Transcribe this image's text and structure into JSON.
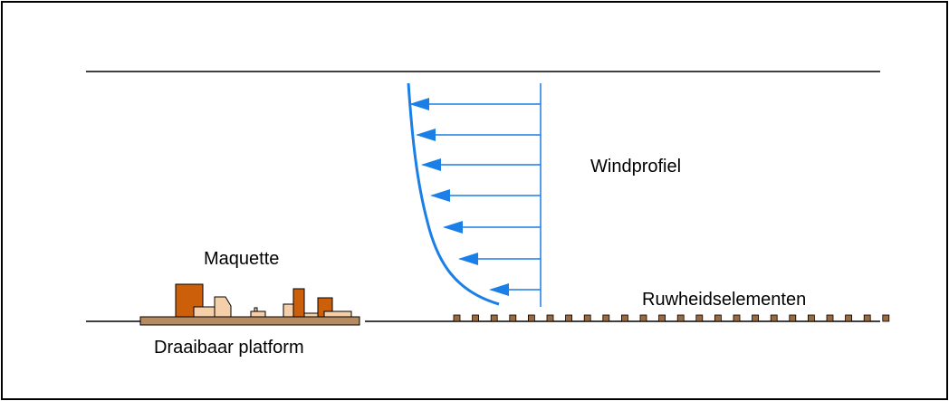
{
  "labels": {
    "windprofiel": "Windprofiel",
    "maquette": "Maquette",
    "platform": "Draaibaar platform",
    "ruwheid": "Ruwheidselementen"
  },
  "colors": {
    "wind": "#1a7fe6",
    "platform": "#b88a60",
    "building_dark": "#cc5f0a",
    "building_light": "#f5ceaa",
    "roughness": "#9a6a40",
    "line": "#000000"
  },
  "icons": {
    "wind_arrow": "left-arrow",
    "building": "block"
  }
}
